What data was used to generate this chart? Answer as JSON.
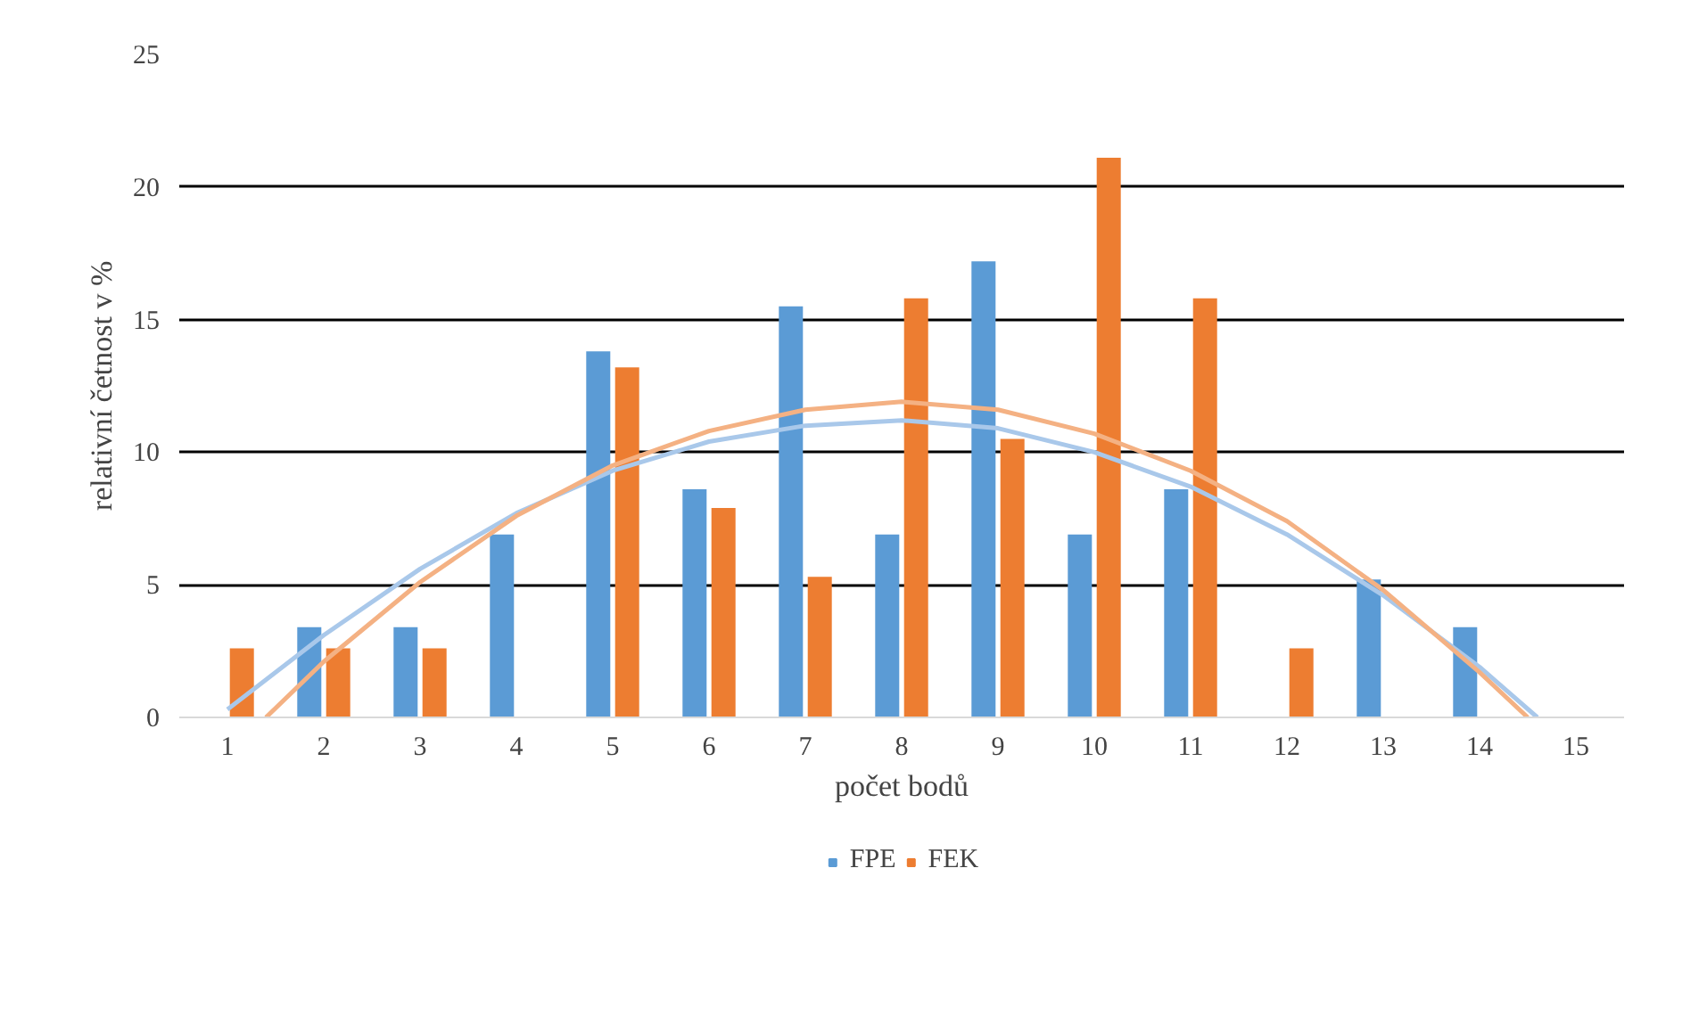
{
  "chart_data": {
    "type": "bar",
    "xlabel": "počet bodů",
    "ylabel": "relativní četnost v %",
    "x": [
      1,
      2,
      3,
      4,
      5,
      6,
      7,
      8,
      9,
      10,
      11,
      12,
      13,
      14,
      15
    ],
    "xlim": [
      0.5,
      15.5
    ],
    "xticks": [
      1,
      2,
      3,
      4,
      5,
      6,
      7,
      8,
      9,
      10,
      11,
      12,
      13,
      14,
      15
    ],
    "series": [
      {
        "name": "FPE",
        "color": "#5b9bd5",
        "values": [
          0,
          3.4,
          3.4,
          6.9,
          13.8,
          8.6,
          15.5,
          6.9,
          17.2,
          6.9,
          8.6,
          0,
          5.2,
          3.4,
          0
        ]
      },
      {
        "name": "FEK",
        "color": "#ed7d31",
        "values": [
          2.6,
          2.6,
          2.6,
          0,
          13.2,
          7.9,
          5.3,
          15.8,
          10.5,
          21.1,
          15.8,
          2.6,
          0,
          0,
          0
        ]
      },
      {
        "type": "line",
        "color": "#a9c8ea",
        "x": [
          1,
          2,
          3,
          4,
          5,
          6,
          7,
          8,
          9,
          10,
          11,
          12,
          13,
          14,
          14.6
        ],
        "values": [
          0.3,
          3.1,
          5.6,
          7.7,
          9.3,
          10.4,
          11.0,
          11.2,
          10.9,
          10.0,
          8.7,
          6.9,
          4.6,
          1.9,
          0
        ]
      },
      {
        "type": "line",
        "color": "#f4b183",
        "x": [
          1.4,
          2,
          3,
          4,
          5,
          6,
          7,
          8,
          9,
          10,
          11,
          12,
          13,
          14,
          14.5
        ],
        "values": [
          0,
          2.1,
          5.1,
          7.6,
          9.5,
          10.8,
          11.6,
          11.9,
          11.6,
          10.7,
          9.3,
          7.4,
          4.8,
          1.7,
          0
        ]
      }
    ],
    "ylim": [
      0,
      25
    ],
    "yticks": [
      0,
      5,
      10,
      15,
      20,
      25
    ],
    "grid": "y",
    "legend": "bottom"
  }
}
